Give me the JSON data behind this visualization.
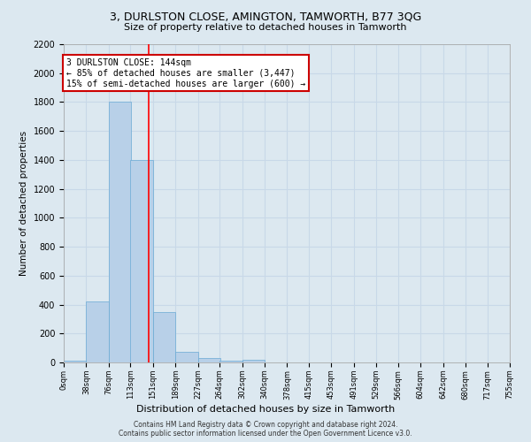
{
  "title": "3, DURLSTON CLOSE, AMINGTON, TAMWORTH, B77 3QG",
  "subtitle": "Size of property relative to detached houses in Tamworth",
  "xlabel": "Distribution of detached houses by size in Tamworth",
  "ylabel": "Number of detached properties",
  "bin_edges": [
    0,
    38,
    76,
    113,
    151,
    189,
    227,
    264,
    302,
    340,
    378,
    415,
    453,
    491,
    529,
    566,
    604,
    642,
    680,
    717,
    755
  ],
  "bar_heights": [
    10,
    420,
    1800,
    1400,
    350,
    75,
    30,
    15,
    20,
    0,
    0,
    0,
    0,
    0,
    0,
    0,
    0,
    0,
    0,
    0
  ],
  "bar_color": "#b8d0e8",
  "bar_edge_color": "#6aaad4",
  "grid_color": "#c8d8e8",
  "background_color": "#dce8f0",
  "red_line_x": 144,
  "annotation_text": "3 DURLSTON CLOSE: 144sqm\n← 85% of detached houses are smaller (3,447)\n15% of semi-detached houses are larger (600) →",
  "annotation_box_color": "#ffffff",
  "annotation_box_edge": "#cc0000",
  "ylim": [
    0,
    2200
  ],
  "yticks": [
    0,
    200,
    400,
    600,
    800,
    1000,
    1200,
    1400,
    1600,
    1800,
    2000,
    2200
  ],
  "footer_line1": "Contains HM Land Registry data © Crown copyright and database right 2024.",
  "footer_line2": "Contains public sector information licensed under the Open Government Licence v3.0."
}
